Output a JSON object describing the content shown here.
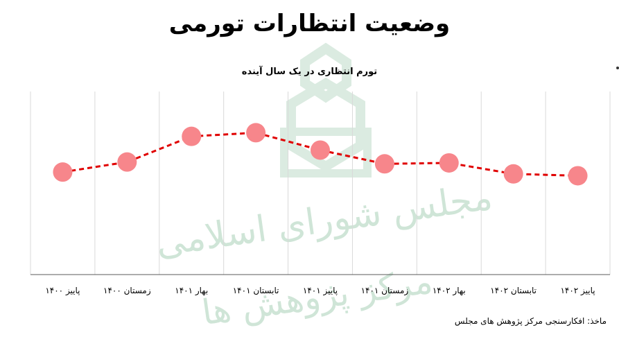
{
  "title": "وضعیت انتظارات تورمی",
  "source": "ماخذ: افکارسنجی مرکز پژوهش های مجلس",
  "watermark": {
    "line1": "مجلس شورای اسلامی",
    "line2": "مرکز پژوهش ها"
  },
  "colors": {
    "line": "#e00000",
    "marker": "#f7868b",
    "grid": "#d9d9d9",
    "axis": "#595959"
  },
  "chart_data": {
    "type": "line",
    "title": "تورم انتظاری در یک سال آینده",
    "categories": [
      "پاییز ۱۴۰۰",
      "زمستان ۱۴۰۰",
      "بهار ۱۴۰۱",
      "تابستان ۱۴۰۱",
      "پاییز ۱۴۰۱",
      "زمستان ۱۴۰۱",
      "بهار ۱۴۰۲",
      "تابستان ۱۴۰۲",
      "پاییز ۱۴۰۲"
    ],
    "values": [
      56,
      61.5,
      75.5,
      77.5,
      68,
      60.5,
      61,
      55,
      54
    ],
    "ylim": [
      0,
      100
    ],
    "y_axis_labels": false,
    "grid": "vertical",
    "marker": "circle",
    "line_style": "dashed"
  }
}
